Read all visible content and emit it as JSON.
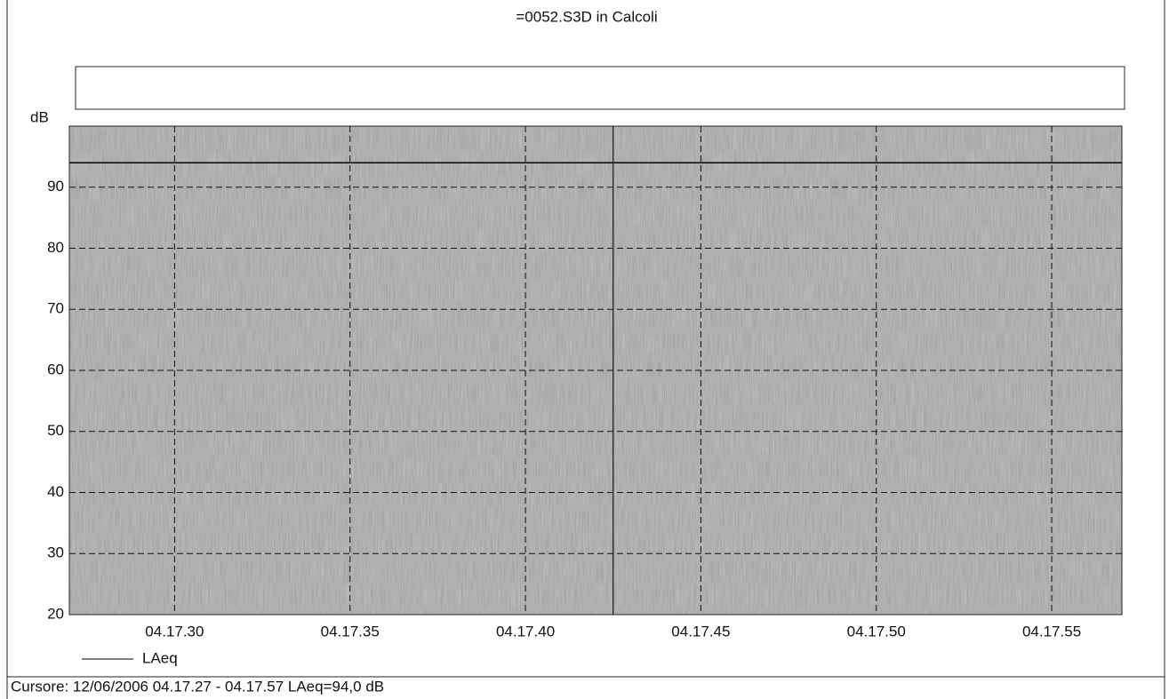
{
  "chart_data": {
    "type": "line",
    "title": "=0052.S3D in Calcoli",
    "y_label": "dB",
    "x": [
      27,
      57
    ],
    "xlim": [
      27,
      57
    ],
    "xticks": [
      {
        "value": 30,
        "label": "04.17.30"
      },
      {
        "value": 35,
        "label": "04.17.35"
      },
      {
        "value": 40,
        "label": "04.17.40"
      },
      {
        "value": 45,
        "label": "04.17.45"
      },
      {
        "value": 50,
        "label": "04.17.50"
      },
      {
        "value": 55,
        "label": "04.17.55"
      }
    ],
    "ylim": [
      20,
      100
    ],
    "yticks": [
      20,
      30,
      40,
      50,
      60,
      70,
      80,
      90
    ],
    "grid": true,
    "series": [
      {
        "name": "LAeq",
        "color": "#000000",
        "values": [
          94,
          94
        ]
      }
    ],
    "cursor_x": 42.5,
    "legend": "bottom-left"
  },
  "footer": "Cursore: 12/06/2006 04.17.27 - 04.17.57  LAeq=94,0 dB"
}
